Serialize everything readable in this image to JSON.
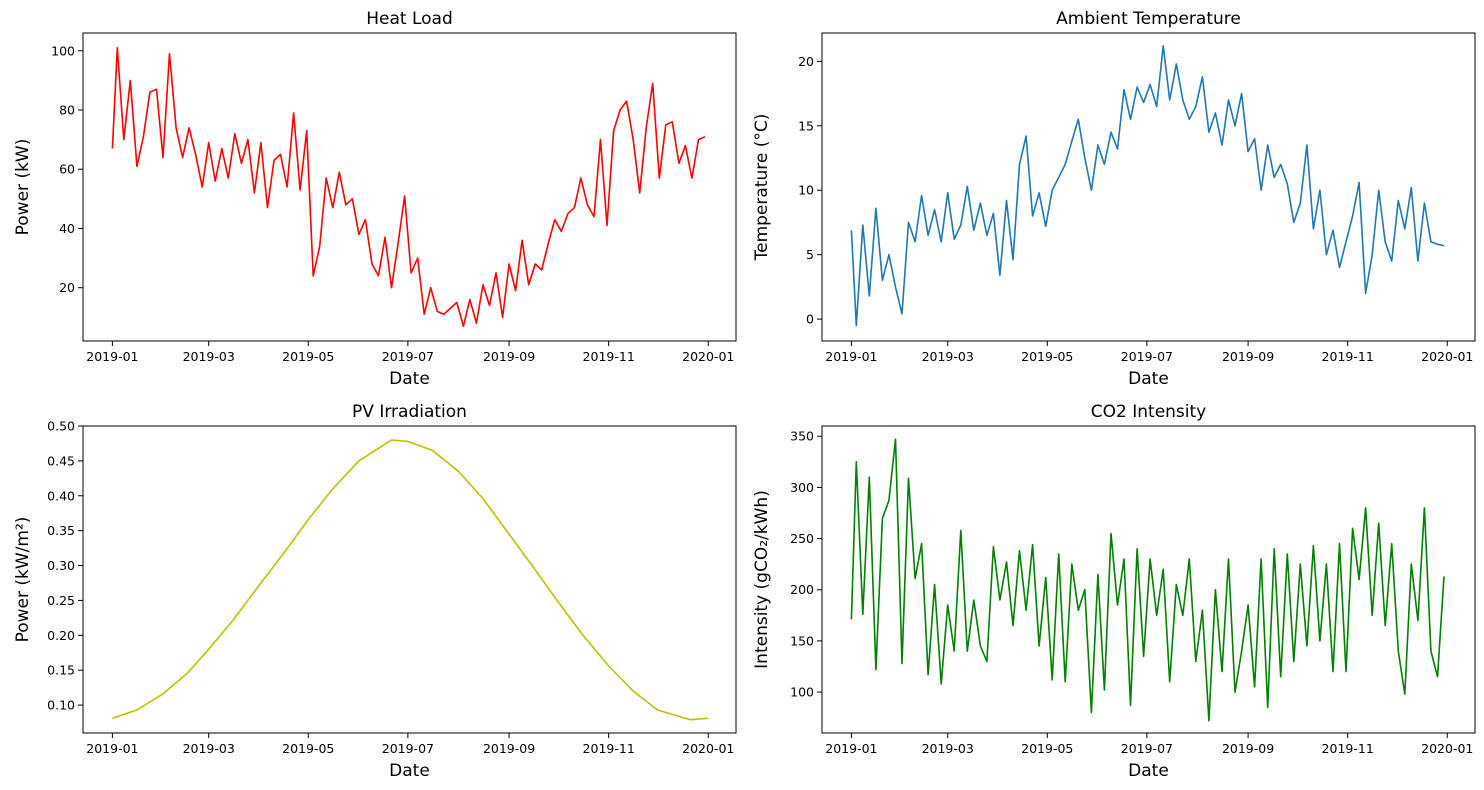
{
  "chart_data": [
    {
      "type": "line",
      "title": "Heat Load",
      "xlabel": "Date",
      "ylabel": "Power (kW)",
      "color": "#ff0000",
      "x_range": [
        "2018-12-14",
        "2020-01-18"
      ],
      "x_ticks": [
        "2019-01",
        "2019-03",
        "2019-05",
        "2019-07",
        "2019-09",
        "2019-11",
        "2020-01"
      ],
      "ylim": [
        2,
        106
      ],
      "y_ticks": [
        20,
        40,
        60,
        80,
        100
      ],
      "grid": false,
      "x": [
        "2019-01-01",
        "2019-01-04",
        "2019-01-08",
        "2019-01-12",
        "2019-01-16",
        "2019-01-20",
        "2019-01-24",
        "2019-01-28",
        "2019-02-01",
        "2019-02-05",
        "2019-02-09",
        "2019-02-13",
        "2019-02-17",
        "2019-02-21",
        "2019-02-25",
        "2019-03-01",
        "2019-03-05",
        "2019-03-09",
        "2019-03-13",
        "2019-03-17",
        "2019-03-21",
        "2019-03-25",
        "2019-03-29",
        "2019-04-02",
        "2019-04-06",
        "2019-04-10",
        "2019-04-14",
        "2019-04-18",
        "2019-04-22",
        "2019-04-26",
        "2019-04-30",
        "2019-05-04",
        "2019-05-08",
        "2019-05-12",
        "2019-05-16",
        "2019-05-20",
        "2019-05-24",
        "2019-05-28",
        "2019-06-01",
        "2019-06-05",
        "2019-06-09",
        "2019-06-13",
        "2019-06-17",
        "2019-06-21",
        "2019-06-25",
        "2019-06-29",
        "2019-07-03",
        "2019-07-07",
        "2019-07-11",
        "2019-07-15",
        "2019-07-19",
        "2019-07-23",
        "2019-07-27",
        "2019-07-31",
        "2019-08-04",
        "2019-08-08",
        "2019-08-12",
        "2019-08-16",
        "2019-08-20",
        "2019-08-24",
        "2019-08-28",
        "2019-09-01",
        "2019-09-05",
        "2019-09-09",
        "2019-09-13",
        "2019-09-17",
        "2019-09-21",
        "2019-09-25",
        "2019-09-29",
        "2019-10-03",
        "2019-10-07",
        "2019-10-11",
        "2019-10-15",
        "2019-10-19",
        "2019-10-23",
        "2019-10-27",
        "2019-10-31",
        "2019-11-04",
        "2019-11-08",
        "2019-11-12",
        "2019-11-16",
        "2019-11-20",
        "2019-11-24",
        "2019-11-28",
        "2019-12-02",
        "2019-12-06",
        "2019-12-10",
        "2019-12-14",
        "2019-12-18",
        "2019-12-22",
        "2019-12-26",
        "2019-12-30"
      ],
      "y": [
        67,
        101,
        70,
        90,
        61,
        71,
        86,
        87,
        64,
        99,
        74,
        64,
        74,
        65,
        54,
        69,
        56,
        67,
        57,
        72,
        62,
        70,
        52,
        69,
        47,
        63,
        65,
        54,
        79,
        53,
        73,
        24,
        34,
        57,
        47,
        59,
        48,
        50,
        38,
        43,
        28,
        24,
        37,
        20,
        35,
        51,
        25,
        30,
        11,
        20,
        12,
        11,
        13,
        15,
        7,
        16,
        8,
        21,
        14,
        25,
        10,
        28,
        19,
        36,
        21,
        28,
        26,
        35,
        43,
        39,
        45,
        47,
        57,
        48,
        44,
        70,
        41,
        73,
        80,
        83,
        70,
        52,
        74,
        89,
        57,
        75,
        76,
        62,
        68,
        57,
        70,
        71
      ]
    },
    {
      "type": "line",
      "title": "Ambient Temperature",
      "xlabel": "Date",
      "ylabel": "Temperature (°C)",
      "color": "#1f77b4",
      "x_range": [
        "2018-12-14",
        "2020-01-18"
      ],
      "x_ticks": [
        "2019-01",
        "2019-03",
        "2019-05",
        "2019-07",
        "2019-09",
        "2019-11",
        "2020-01"
      ],
      "ylim": [
        -1.7,
        22.2
      ],
      "y_ticks": [
        0,
        5,
        10,
        15,
        20
      ],
      "grid": false,
      "x": [
        "2019-01-01",
        "2019-01-04",
        "2019-01-08",
        "2019-01-12",
        "2019-01-16",
        "2019-01-20",
        "2019-01-24",
        "2019-01-28",
        "2019-02-01",
        "2019-02-05",
        "2019-02-09",
        "2019-02-13",
        "2019-02-17",
        "2019-02-21",
        "2019-02-25",
        "2019-03-01",
        "2019-03-05",
        "2019-03-09",
        "2019-03-13",
        "2019-03-17",
        "2019-03-21",
        "2019-03-25",
        "2019-03-29",
        "2019-04-02",
        "2019-04-06",
        "2019-04-10",
        "2019-04-14",
        "2019-04-18",
        "2019-04-22",
        "2019-04-26",
        "2019-04-30",
        "2019-05-04",
        "2019-05-08",
        "2019-05-12",
        "2019-05-16",
        "2019-05-20",
        "2019-05-24",
        "2019-05-28",
        "2019-06-01",
        "2019-06-05",
        "2019-06-09",
        "2019-06-13",
        "2019-06-17",
        "2019-06-21",
        "2019-06-25",
        "2019-06-29",
        "2019-07-03",
        "2019-07-07",
        "2019-07-11",
        "2019-07-15",
        "2019-07-19",
        "2019-07-23",
        "2019-07-27",
        "2019-07-31",
        "2019-08-04",
        "2019-08-08",
        "2019-08-12",
        "2019-08-16",
        "2019-08-20",
        "2019-08-24",
        "2019-08-28",
        "2019-09-01",
        "2019-09-05",
        "2019-09-09",
        "2019-09-13",
        "2019-09-17",
        "2019-09-21",
        "2019-09-25",
        "2019-09-29",
        "2019-10-03",
        "2019-10-07",
        "2019-10-11",
        "2019-10-15",
        "2019-10-19",
        "2019-10-23",
        "2019-10-27",
        "2019-10-31",
        "2019-11-04",
        "2019-11-08",
        "2019-11-12",
        "2019-11-16",
        "2019-11-20",
        "2019-11-24",
        "2019-11-28",
        "2019-12-02",
        "2019-12-06",
        "2019-12-10",
        "2019-12-14",
        "2019-12-18",
        "2019-12-22",
        "2019-12-26",
        "2019-12-30"
      ],
      "y": [
        6.9,
        -0.5,
        7.3,
        1.8,
        8.6,
        3.0,
        5.0,
        2.5,
        0.4,
        7.5,
        6.0,
        9.6,
        6.5,
        8.5,
        6.0,
        9.8,
        6.2,
        7.3,
        10.3,
        6.9,
        9.0,
        6.5,
        8.2,
        3.4,
        9.2,
        4.6,
        12.0,
        14.2,
        8.0,
        9.8,
        7.2,
        10.0,
        11.0,
        12.0,
        13.8,
        15.5,
        12.5,
        10.0,
        13.5,
        12.0,
        14.5,
        13.2,
        17.8,
        15.5,
        18.0,
        16.8,
        18.2,
        16.5,
        21.2,
        17.0,
        19.8,
        17.0,
        15.5,
        16.5,
        18.8,
        14.5,
        16.0,
        13.5,
        17.0,
        15.0,
        17.5,
        13.0,
        14.0,
        10.0,
        13.5,
        11.0,
        12.0,
        10.5,
        7.5,
        9.0,
        13.5,
        7.0,
        10.0,
        5.0,
        6.9,
        4.0,
        6.0,
        8.0,
        10.6,
        2.0,
        5.0,
        10.0,
        6.0,
        4.5,
        9.2,
        7.0,
        10.2,
        4.5,
        9.0,
        6.0,
        5.8,
        5.7
      ]
    },
    {
      "type": "line",
      "title": "PV Irradiation",
      "xlabel": "Date",
      "ylabel": "Power (kW/m²)",
      "color": "#bfbf00",
      "x_range": [
        "2018-12-14",
        "2020-01-18"
      ],
      "x_ticks": [
        "2019-01",
        "2019-03",
        "2019-05",
        "2019-07",
        "2019-09",
        "2019-11",
        "2020-01"
      ],
      "ylim": [
        0.06,
        0.5
      ],
      "y_ticks": [
        0.1,
        0.15,
        0.2,
        0.25,
        0.3,
        0.35,
        0.4,
        0.45,
        0.5
      ],
      "y_tick_labels": [
        "0.10",
        "0.15",
        "0.20",
        "0.25",
        "0.30",
        "0.35",
        "0.40",
        "0.45",
        "0.50"
      ],
      "grid": false,
      "x": [
        "2019-01-01",
        "2019-01-16",
        "2019-02-01",
        "2019-02-16",
        "2019-03-01",
        "2019-03-16",
        "2019-04-01",
        "2019-04-16",
        "2019-05-01",
        "2019-05-16",
        "2019-06-01",
        "2019-06-21",
        "2019-07-01",
        "2019-07-16",
        "2019-08-01",
        "2019-08-16",
        "2019-09-01",
        "2019-09-16",
        "2019-10-01",
        "2019-10-16",
        "2019-11-01",
        "2019-11-16",
        "2019-12-01",
        "2019-12-21",
        "2020-01-01"
      ],
      "y": [
        0.081,
        0.093,
        0.116,
        0.146,
        0.18,
        0.222,
        0.272,
        0.318,
        0.366,
        0.41,
        0.45,
        0.48,
        0.478,
        0.465,
        0.435,
        0.396,
        0.345,
        0.297,
        0.248,
        0.201,
        0.156,
        0.12,
        0.093,
        0.079,
        0.081
      ]
    },
    {
      "type": "line",
      "title": "CO2 Intensity",
      "xlabel": "Date",
      "ylabel": "Intensity (gCO₂/kWh)",
      "color": "#008000",
      "x_range": [
        "2018-12-14",
        "2020-01-18"
      ],
      "x_ticks": [
        "2019-01",
        "2019-03",
        "2019-05",
        "2019-07",
        "2019-09",
        "2019-11",
        "2020-01"
      ],
      "ylim": [
        60,
        360
      ],
      "y_ticks": [
        100,
        150,
        200,
        250,
        300,
        350
      ],
      "grid": false,
      "x": [
        "2019-01-01",
        "2019-01-04",
        "2019-01-08",
        "2019-01-12",
        "2019-01-16",
        "2019-01-20",
        "2019-01-24",
        "2019-01-28",
        "2019-02-01",
        "2019-02-05",
        "2019-02-09",
        "2019-02-13",
        "2019-02-17",
        "2019-02-21",
        "2019-02-25",
        "2019-03-01",
        "2019-03-05",
        "2019-03-09",
        "2019-03-13",
        "2019-03-17",
        "2019-03-21",
        "2019-03-25",
        "2019-03-29",
        "2019-04-02",
        "2019-04-06",
        "2019-04-10",
        "2019-04-14",
        "2019-04-18",
        "2019-04-22",
        "2019-04-26",
        "2019-04-30",
        "2019-05-04",
        "2019-05-08",
        "2019-05-12",
        "2019-05-16",
        "2019-05-20",
        "2019-05-24",
        "2019-05-28",
        "2019-06-01",
        "2019-06-05",
        "2019-06-09",
        "2019-06-13",
        "2019-06-17",
        "2019-06-21",
        "2019-06-25",
        "2019-06-29",
        "2019-07-03",
        "2019-07-07",
        "2019-07-11",
        "2019-07-15",
        "2019-07-19",
        "2019-07-23",
        "2019-07-27",
        "2019-07-31",
        "2019-08-04",
        "2019-08-08",
        "2019-08-12",
        "2019-08-16",
        "2019-08-20",
        "2019-08-24",
        "2019-08-28",
        "2019-09-01",
        "2019-09-05",
        "2019-09-09",
        "2019-09-13",
        "2019-09-17",
        "2019-09-21",
        "2019-09-25",
        "2019-09-29",
        "2019-10-03",
        "2019-10-07",
        "2019-10-11",
        "2019-10-15",
        "2019-10-19",
        "2019-10-23",
        "2019-10-27",
        "2019-10-31",
        "2019-11-04",
        "2019-11-08",
        "2019-11-12",
        "2019-11-16",
        "2019-11-20",
        "2019-11-24",
        "2019-11-28",
        "2019-12-02",
        "2019-12-06",
        "2019-12-10",
        "2019-12-14",
        "2019-12-18",
        "2019-12-22",
        "2019-12-26",
        "2019-12-30"
      ],
      "y": [
        171,
        325,
        176,
        310,
        122,
        270,
        287,
        347,
        128,
        309,
        211,
        245,
        117,
        205,
        108,
        185,
        140,
        258,
        140,
        190,
        145,
        130,
        242,
        190,
        227,
        165,
        238,
        180,
        244,
        145,
        212,
        112,
        235,
        110,
        225,
        180,
        200,
        80,
        215,
        102,
        255,
        185,
        230,
        87,
        240,
        135,
        230,
        175,
        220,
        110,
        205,
        175,
        230,
        130,
        180,
        72,
        200,
        120,
        230,
        100,
        140,
        185,
        105,
        230,
        85,
        240,
        115,
        235,
        130,
        225,
        145,
        243,
        150,
        225,
        120,
        245,
        120,
        260,
        210,
        280,
        175,
        265,
        165,
        245,
        140,
        98,
        225,
        170,
        280,
        140,
        115,
        213
      ]
    }
  ]
}
